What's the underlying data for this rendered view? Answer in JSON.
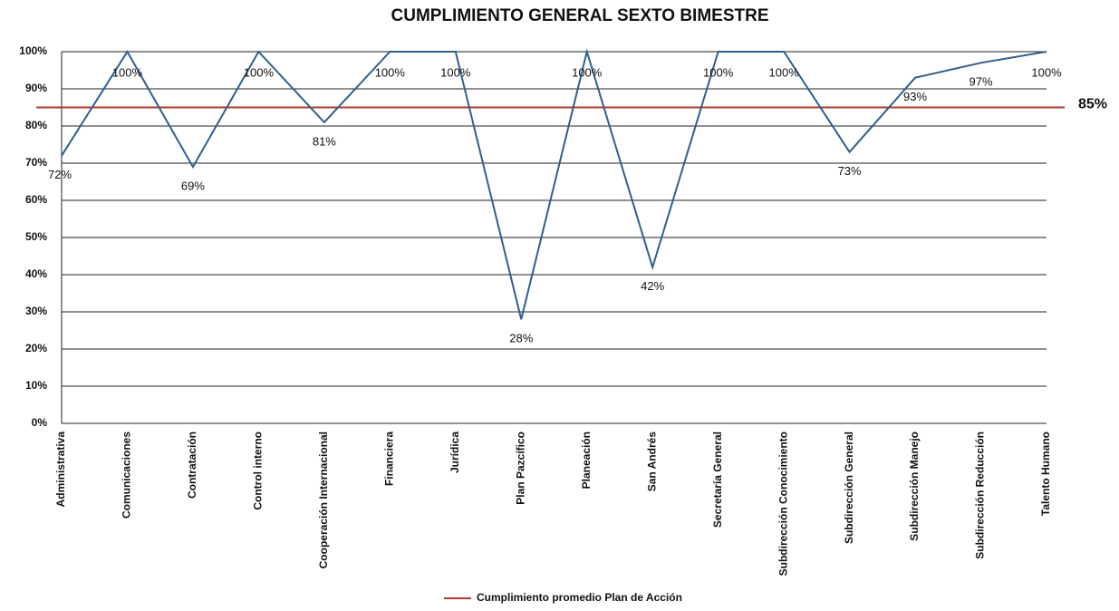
{
  "chart_data": {
    "type": "line",
    "title": "CUMPLIMIENTO GENERAL SEXTO BIMESTRE",
    "categories": [
      "Administrativa",
      "Comunicaciones",
      "Contratación",
      "Control interno",
      "Cooperación Internacional",
      "Financiera",
      "Jurídica",
      "Plan Pazcífico",
      "Planeación",
      "San Andrés",
      "Secretaría General",
      "Subdirección Conocimiento",
      "Subdirección General",
      "Subdirección Manejo",
      "Subdirección Reducción",
      "Talento Humano"
    ],
    "series": [
      {
        "color": "#2f5f8f",
        "values": [
          72,
          100,
          69,
          100,
          81,
          100,
          100,
          28,
          100,
          42,
          100,
          100,
          73,
          93,
          97,
          100
        ],
        "value_labels": [
          "72%",
          "100%",
          "69%",
          "100%",
          "81%",
          "100%",
          "100%",
          "28%",
          "100%",
          "42%",
          "100%",
          "100%",
          "73%",
          "93%",
          "97%",
          "100%"
        ]
      }
    ],
    "reference": {
      "name": "Cumplimiento promedio Plan de Acción",
      "value": 85,
      "label": "85%",
      "color": "#b03a2e"
    },
    "ylim": [
      0,
      100
    ],
    "yticks": [
      {
        "value": 0,
        "label": "0%"
      },
      {
        "value": 10,
        "label": "10%"
      },
      {
        "value": 20,
        "label": "20%"
      },
      {
        "value": 30,
        "label": "30%"
      },
      {
        "value": 40,
        "label": "40%"
      },
      {
        "value": 50,
        "label": "50%"
      },
      {
        "value": 60,
        "label": "60%"
      },
      {
        "value": 70,
        "label": "70%"
      },
      {
        "value": 80,
        "label": "80%"
      },
      {
        "value": 90,
        "label": "90%"
      },
      {
        "value": 100,
        "label": "100%"
      }
    ],
    "grid": true
  }
}
